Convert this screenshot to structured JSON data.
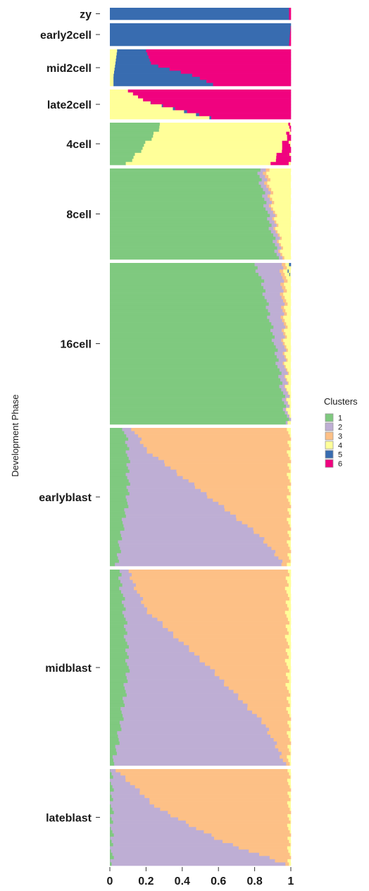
{
  "chart_data": {
    "type": "bar",
    "orientation": "horizontal-stacked",
    "ylabel": "Development Phase",
    "xlim": [
      0,
      1
    ],
    "x_ticks": [
      "0",
      "0.2",
      "0.4",
      "0.6",
      "0.8",
      "1"
    ],
    "legend": {
      "title": "Clusters",
      "placement": "right",
      "entries": [
        {
          "label": "1",
          "color": "#7fc97f"
        },
        {
          "label": "2",
          "color": "#beaed4"
        },
        {
          "label": "3",
          "color": "#fdc086"
        },
        {
          "label": "4",
          "color": "#ffff99"
        },
        {
          "label": "5",
          "color": "#386cb0"
        },
        {
          "label": "6",
          "color": "#f0027f"
        }
      ]
    },
    "phases": [
      {
        "name": "zy",
        "n": 4,
        "profiles": [
          {
            "at": 0,
            "p": [
              0,
              0,
              0,
              0,
              0.99,
              0.01
            ]
          },
          {
            "at": 1,
            "p": [
              0,
              0,
              0,
              0,
              0.99,
              0.01
            ]
          }
        ]
      },
      {
        "name": "early2cell",
        "n": 8,
        "profiles": [
          {
            "at": 0,
            "p": [
              0,
              0,
              0,
              0,
              1,
              0
            ]
          },
          {
            "at": 1,
            "p": [
              0,
              0,
              0,
              0,
              0.99,
              0.01
            ]
          }
        ]
      },
      {
        "name": "mid2cell",
        "n": 12,
        "profiles": [
          {
            "at": 0,
            "p": [
              0,
              0,
              0,
              0.04,
              0.16,
              0.8
            ]
          },
          {
            "at": 0.4,
            "p": [
              0,
              0,
              0,
              0.03,
              0.2,
              0.77
            ]
          },
          {
            "at": 0.75,
            "p": [
              0,
              0,
              0,
              0.02,
              0.45,
              0.53
            ]
          },
          {
            "at": 1,
            "p": [
              0,
              0,
              0,
              0.02,
              0.55,
              0.43
            ]
          }
        ]
      },
      {
        "name": "late2cell",
        "n": 10,
        "profiles": [
          {
            "at": 0,
            "p": [
              0,
              0,
              0,
              0.1,
              0,
              0.9
            ]
          },
          {
            "at": 0.4,
            "p": [
              0,
              0,
              0,
              0.2,
              0,
              0.8
            ]
          },
          {
            "at": 0.85,
            "p": [
              0,
              0,
              0,
              0.45,
              0.02,
              0.53
            ]
          },
          {
            "at": 1,
            "p": [
              0,
              0,
              0,
              0.55,
              0.01,
              0.44
            ]
          }
        ]
      },
      {
        "name": "4cell",
        "n": 14,
        "profiles": [
          {
            "at": 0,
            "p": [
              0.28,
              0,
              0,
              0.71,
              0,
              0.01
            ]
          },
          {
            "at": 0.3,
            "p": [
              0.24,
              0,
              0,
              0.74,
              0,
              0.02
            ]
          },
          {
            "at": 0.6,
            "p": [
              0.18,
              0,
              0,
              0.77,
              0,
              0.05
            ]
          },
          {
            "at": 1,
            "p": [
              0.1,
              0,
              0,
              0.8,
              0,
              0.1
            ]
          }
        ]
      },
      {
        "name": "8cell",
        "n": 28,
        "profiles": [
          {
            "at": 0,
            "p": [
              0.82,
              0.03,
              0.02,
              0.13,
              0,
              0
            ]
          },
          {
            "at": 0.5,
            "p": [
              0.87,
              0.03,
              0.01,
              0.09,
              0,
              0
            ]
          },
          {
            "at": 1,
            "p": [
              0.93,
              0.02,
              0.01,
              0.04,
              0,
              0
            ]
          }
        ]
      },
      {
        "name": "16cell",
        "n": 49,
        "profiles": [
          {
            "at": 0,
            "p": [
              0.8,
              0.15,
              0.02,
              0.02,
              0.01,
              0
            ]
          },
          {
            "at": 0.1,
            "p": [
              0.84,
              0.11,
              0.02,
              0.03,
              0,
              0
            ]
          },
          {
            "at": 0.5,
            "p": [
              0.91,
              0.05,
              0.01,
              0.03,
              0,
              0
            ]
          },
          {
            "at": 1,
            "p": [
              0.98,
              0.01,
              0,
              0.01,
              0,
              0
            ]
          }
        ]
      },
      {
        "name": "earlyblast",
        "n": 43,
        "profiles": [
          {
            "at": 0,
            "p": [
              0.08,
              0.05,
              0.86,
              0.01,
              0,
              0
            ]
          },
          {
            "at": 0.15,
            "p": [
              0.1,
              0.1,
              0.79,
              0.01,
              0,
              0
            ]
          },
          {
            "at": 0.5,
            "p": [
              0.1,
              0.45,
              0.44,
              0.01,
              0,
              0
            ]
          },
          {
            "at": 0.8,
            "p": [
              0.06,
              0.78,
              0.15,
              0.01,
              0,
              0
            ]
          },
          {
            "at": 1,
            "p": [
              0.04,
              0.92,
              0.03,
              0.01,
              0,
              0
            ]
          }
        ]
      },
      {
        "name": "midblast",
        "n": 57,
        "profiles": [
          {
            "at": 0,
            "p": [
              0.05,
              0.05,
              0.88,
              0.02,
              0,
              0
            ]
          },
          {
            "at": 0.2,
            "p": [
              0.08,
              0.12,
              0.78,
              0.02,
              0,
              0
            ]
          },
          {
            "at": 0.5,
            "p": [
              0.1,
              0.45,
              0.43,
              0.02,
              0,
              0
            ]
          },
          {
            "at": 0.8,
            "p": [
              0.06,
              0.8,
              0.13,
              0.01,
              0,
              0
            ]
          },
          {
            "at": 1,
            "p": [
              0.02,
              0.95,
              0.02,
              0.01,
              0,
              0
            ]
          }
        ]
      },
      {
        "name": "lateblast",
        "n": 30,
        "profiles": [
          {
            "at": 0,
            "p": [
              0.01,
              0.03,
              0.95,
              0.01,
              0,
              0
            ]
          },
          {
            "at": 0.4,
            "p": [
              0.01,
              0.25,
              0.73,
              0.01,
              0,
              0
            ]
          },
          {
            "at": 0.75,
            "p": [
              0.01,
              0.6,
              0.38,
              0.01,
              0,
              0
            ]
          },
          {
            "at": 1,
            "p": [
              0.01,
              0.96,
              0.02,
              0.01,
              0,
              0
            ]
          }
        ]
      }
    ]
  }
}
